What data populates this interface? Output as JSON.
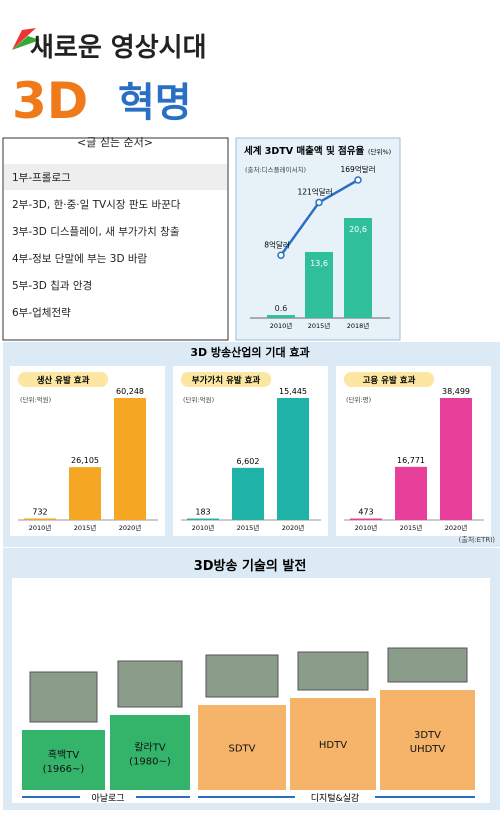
{
  "header": {
    "subtitle": "새로운 영상시대",
    "title_3d": "3D",
    "title_rest": "혁명"
  },
  "series_order": {
    "heading": "<글 싣는 순서>",
    "items": [
      "1부-프롤로그",
      "2부-3D, 한·중·일 TV시장 판도 바꾼다",
      "3부-3D 디스플레이, 새 부가가치 창출",
      "4부-정보 단말에 부는 3D 바람",
      "5부-3D 칩과 안경",
      "6부-업체전략"
    ]
  },
  "industry": {
    "title": "3D 방송산업의 기대 효과",
    "source": "(출처:ETRI)"
  },
  "chart_data": [
    {
      "type": "bar",
      "title": "세계 3DTV 매출액 및 점유율",
      "unit": "(단위%)",
      "source": "(출처:디스플레이서치)",
      "categories": [
        "2010년",
        "2015년",
        "2018년"
      ],
      "values": [
        0.6,
        13.6,
        20.6
      ],
      "value_labels": [
        "0.6",
        "13,6",
        "20,6"
      ],
      "color": "#2fbf9a",
      "line": {
        "values": [
          8,
          121,
          169
        ],
        "value_labels": [
          "8억달러",
          "121억달러",
          "169억달러"
        ],
        "color": "#2a6fc4"
      }
    },
    {
      "type": "bar",
      "title": "생산 유발 효과",
      "unit": "(단위:억원)",
      "categories": [
        "2010년",
        "2015년",
        "2020년"
      ],
      "values": [
        732,
        26105,
        60248
      ],
      "value_labels": [
        "732",
        "26,105",
        "60,248"
      ],
      "color": "#f5a623"
    },
    {
      "type": "bar",
      "title": "부가가치 유발 효과",
      "unit": "(단위:억원)",
      "categories": [
        "2010년",
        "2015년",
        "2020년"
      ],
      "values": [
        183,
        6602,
        15445
      ],
      "value_labels": [
        "183",
        "6,602",
        "15,445"
      ],
      "color": "#1fb3a8"
    },
    {
      "type": "bar",
      "title": "고용 유발 효과",
      "unit": "(단위:명)",
      "categories": [
        "2010년",
        "2015년",
        "2020년"
      ],
      "values": [
        473,
        16771,
        38499
      ],
      "value_labels": [
        "473",
        "16,771",
        "38,499"
      ],
      "color": "#e8409a"
    }
  ],
  "tech": {
    "title": "3D방송 기술의 발전",
    "stages": [
      {
        "label": "흑백TV",
        "period": "(1966~)"
      },
      {
        "label": "칼라TV",
        "period": "(1980~)"
      },
      {
        "label": "SDTV"
      },
      {
        "label": "HDTV"
      },
      {
        "label": "3DTV",
        "period": "UHDTV"
      }
    ],
    "groups": [
      "아날로그",
      "디지털&실감"
    ]
  }
}
